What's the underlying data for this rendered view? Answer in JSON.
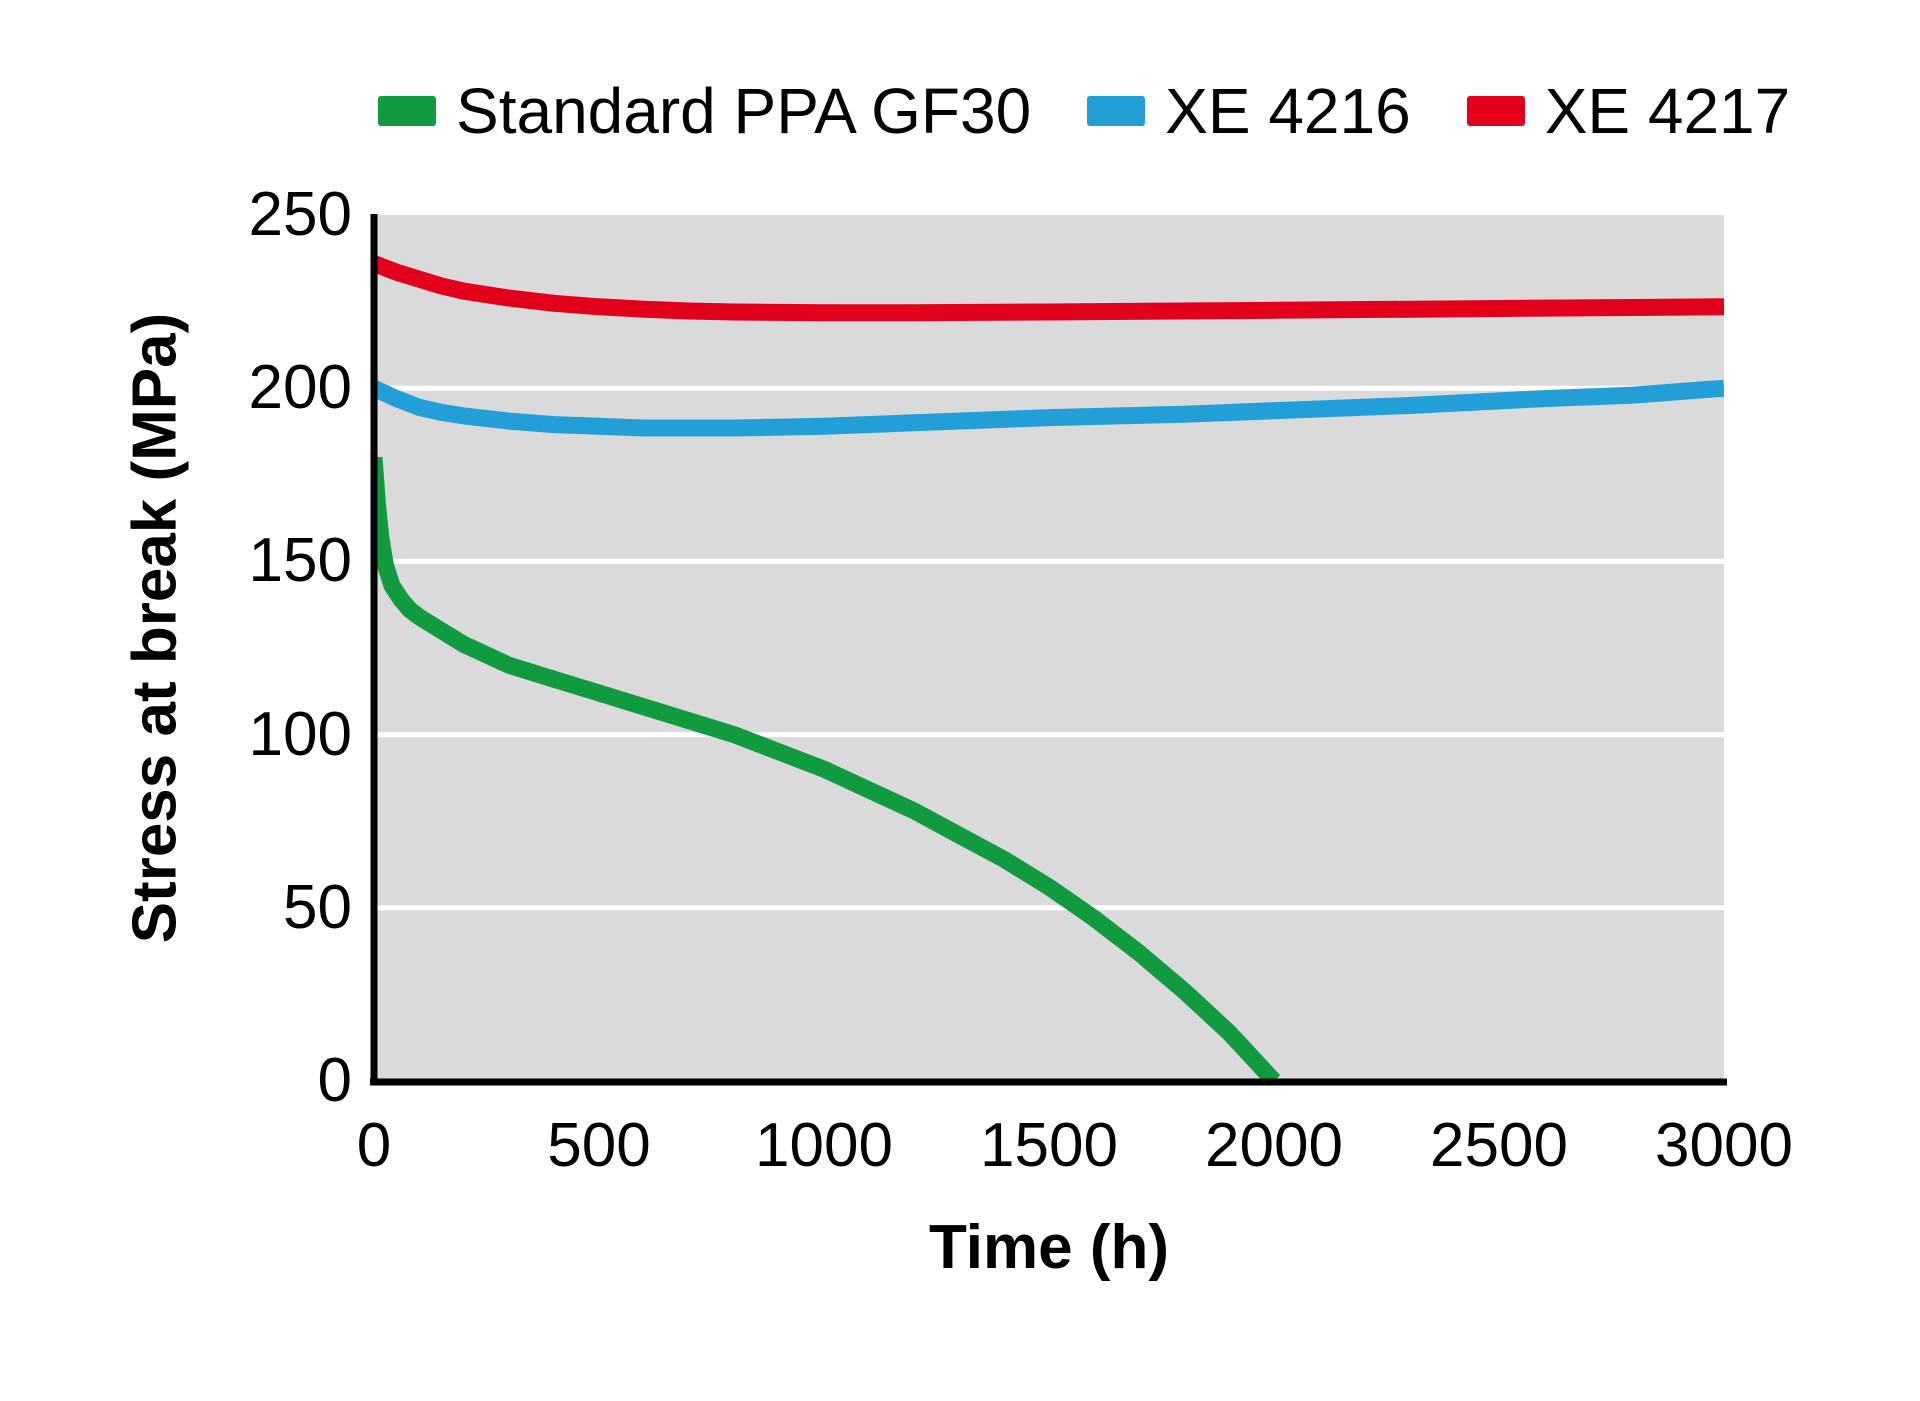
{
  "figure": {
    "background": "#ffffff",
    "plot_bg": "#dadada",
    "grid_color": "#ffffff",
    "axis_color": "#000000",
    "text_color": "#000000"
  },
  "legend": {
    "items": [
      {
        "label": "Standard PPA GF30",
        "color": "#109c3e"
      },
      {
        "label": "XE 4216",
        "color": "#219fd6"
      },
      {
        "label": "XE 4217",
        "color": "#e2001a"
      }
    ]
  },
  "chart_data": {
    "type": "line",
    "title": "",
    "xlabel": "Time (h)",
    "ylabel": "Stress at break (MPa)",
    "xlim": [
      0,
      3000
    ],
    "ylim": [
      0,
      250
    ],
    "x_ticks": [
      0,
      500,
      1000,
      1500,
      2000,
      2500,
      3000
    ],
    "y_ticks": [
      0,
      50,
      100,
      150,
      200,
      250
    ],
    "grid": "horizontal-white",
    "legend_position": "top",
    "series": [
      {
        "name": "Standard PPA GF30",
        "color": "#109c3e",
        "points": [
          [
            0,
            180
          ],
          [
            8,
            166
          ],
          [
            15,
            157
          ],
          [
            25,
            149
          ],
          [
            40,
            143
          ],
          [
            60,
            139
          ],
          [
            80,
            136
          ],
          [
            100,
            134
          ],
          [
            150,
            130
          ],
          [
            200,
            126
          ],
          [
            250,
            123
          ],
          [
            300,
            120
          ],
          [
            400,
            116
          ],
          [
            500,
            112
          ],
          [
            600,
            108
          ],
          [
            700,
            104
          ],
          [
            800,
            100
          ],
          [
            900,
            95
          ],
          [
            1000,
            90
          ],
          [
            1100,
            84
          ],
          [
            1200,
            78
          ],
          [
            1300,
            71
          ],
          [
            1400,
            64
          ],
          [
            1500,
            56
          ],
          [
            1600,
            47
          ],
          [
            1700,
            37
          ],
          [
            1800,
            26
          ],
          [
            1900,
            14
          ],
          [
            2000,
            0
          ]
        ]
      },
      {
        "name": "XE 4216",
        "color": "#219fd6",
        "points": [
          [
            0,
            200
          ],
          [
            50,
            197
          ],
          [
            100,
            194.5
          ],
          [
            150,
            193
          ],
          [
            200,
            192
          ],
          [
            300,
            190.5
          ],
          [
            400,
            189.5
          ],
          [
            500,
            189
          ],
          [
            600,
            188.5
          ],
          [
            800,
            188.5
          ],
          [
            1000,
            189
          ],
          [
            1200,
            190
          ],
          [
            1500,
            191.5
          ],
          [
            1800,
            192.5
          ],
          [
            2000,
            193.5
          ],
          [
            2300,
            195
          ],
          [
            2600,
            197
          ],
          [
            2800,
            198
          ],
          [
            2950,
            199.5
          ],
          [
            3000,
            200
          ]
        ]
      },
      {
        "name": "XE 4217",
        "color": "#e2001a",
        "points": [
          [
            0,
            236
          ],
          [
            50,
            233.5
          ],
          [
            100,
            231.5
          ],
          [
            150,
            229.5
          ],
          [
            200,
            228
          ],
          [
            300,
            226
          ],
          [
            400,
            224.5
          ],
          [
            500,
            223.5
          ],
          [
            600,
            222.8
          ],
          [
            700,
            222.3
          ],
          [
            800,
            222
          ],
          [
            1000,
            221.8
          ],
          [
            1200,
            221.8
          ],
          [
            1500,
            222
          ],
          [
            2000,
            222.5
          ],
          [
            2500,
            223
          ],
          [
            3000,
            223.5
          ]
        ]
      }
    ]
  }
}
